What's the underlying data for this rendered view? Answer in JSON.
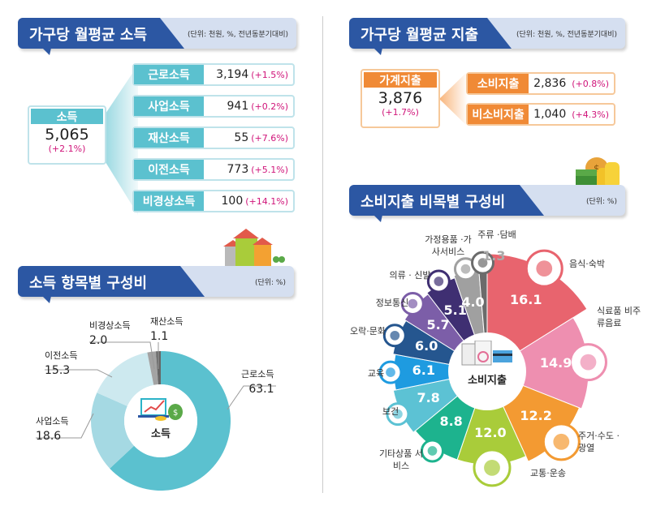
{
  "income": {
    "title": "가구당 월평균 소득",
    "unit": "(단위: 천원, %, 전년동분기대비)",
    "total": {
      "label": "소득",
      "value": "5,065",
      "change": "(+2.1%)"
    },
    "items": [
      {
        "label": "근로소득",
        "value": "3,194",
        "change": "(+1.5%)"
      },
      {
        "label": "사업소득",
        "value": "941",
        "change": "(+0.2%)"
      },
      {
        "label": "재산소득",
        "value": "55",
        "change": "(+7.6%)"
      },
      {
        "label": "이전소득",
        "value": "773",
        "change": "(+5.1%)"
      },
      {
        "label": "비경상소득",
        "value": "100",
        "change": "(+14.1%)"
      }
    ]
  },
  "expense": {
    "title": "가구당 월평균 지출",
    "unit": "(단위: 천원, %, 전년동분기대비)",
    "total": {
      "label": "가계지출",
      "value": "3,876",
      "change": "(+1.7%)"
    },
    "items": [
      {
        "label": "소비지출",
        "value": "2,836",
        "change": "(+0.8%)"
      },
      {
        "label": "비소비지출",
        "value": "1,040",
        "change": "(+4.3%)"
      }
    ]
  },
  "income_comp": {
    "title": "소득 항목별 구성비",
    "unit": "(단위: %)",
    "center": "소득"
  },
  "consumption_comp": {
    "title": "소비지출 비목별 구성비",
    "unit": "(단위: %)",
    "center": "소비지출"
  },
  "chart_data": [
    {
      "type": "pie",
      "subtype": "donut",
      "categories": [
        "근로소득",
        "사업소득",
        "이전소득",
        "비경상소득",
        "재산소득"
      ],
      "values": [
        63.1,
        18.6,
        15.3,
        2.0,
        1.1
      ],
      "value_labels": [
        "63.1",
        "18.6",
        "15.3",
        "2.0",
        "1.1"
      ],
      "colors": [
        "#5bc1cf",
        "#a5d9e3",
        "#cde9ef",
        "#a3a3a3",
        "#666666"
      ]
    },
    {
      "type": "pie",
      "subtype": "polar",
      "categories": [
        "음식·숙박",
        "식료품 비주류음료",
        "주거·수도 ·광열",
        "교통·운송",
        "기타상품 서비스",
        "보건",
        "교육",
        "오락·문화",
        "정보통신",
        "의류 · 신발",
        "가정용품 ·가사서비스",
        "주류 ·담배"
      ],
      "values": [
        16.1,
        14.9,
        12.2,
        12.0,
        8.8,
        7.8,
        6.1,
        6.0,
        5.7,
        5.1,
        4.0,
        1.3
      ],
      "value_labels": [
        "16.1",
        "14.9",
        "12.2",
        "12.0",
        "8.8",
        "7.8",
        "6.1",
        "6.0",
        "5.7",
        "5.1",
        "4.0",
        "1.3"
      ],
      "colors": [
        "#e8646e",
        "#ee8fb0",
        "#f39a32",
        "#a9cc3a",
        "#1db38e",
        "#5cc2d4",
        "#1e9be0",
        "#25568f",
        "#7c5ea8",
        "#3f2f72",
        "#a0a0a0",
        "#6b6b6b"
      ],
      "icons": [
        "food-plate-icon",
        "grocery-icon",
        "house-icon",
        "car-icon",
        "bag-icon",
        "first-aid-icon",
        "graduation-icon",
        "game-controller-icon",
        "phone-icon",
        "clothes-icon",
        "appliance-icon",
        "bottle-icon"
      ]
    }
  ]
}
